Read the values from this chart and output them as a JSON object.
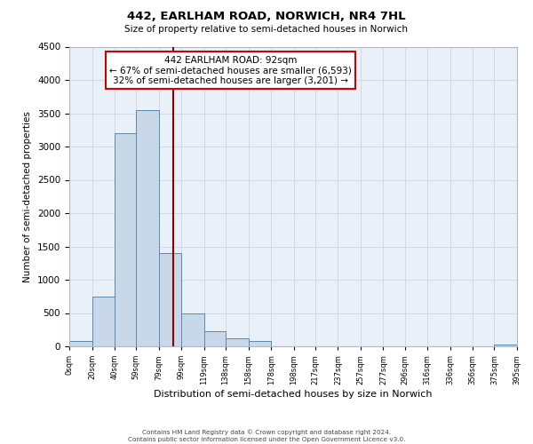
{
  "title": "442, EARLHAM ROAD, NORWICH, NR4 7HL",
  "subtitle": "Size of property relative to semi-detached houses in Norwich",
  "xlabel": "Distribution of semi-detached houses by size in Norwich",
  "ylabel": "Number of semi-detached properties",
  "bin_edges": [
    0,
    20,
    40,
    59,
    79,
    99,
    119,
    138,
    158,
    178,
    198,
    217,
    237,
    257,
    277,
    296,
    316,
    336,
    356,
    375,
    395
  ],
  "bin_counts": [
    75,
    750,
    3200,
    3550,
    1400,
    500,
    230,
    125,
    75,
    0,
    0,
    0,
    0,
    0,
    0,
    0,
    0,
    0,
    0,
    30
  ],
  "bar_color": "#c8d8e8",
  "bar_edge_color": "#5a8ab0",
  "property_size": 92,
  "vline_color": "#8b0000",
  "annotation_line1": "442 EARLHAM ROAD: 92sqm",
  "annotation_line2": "← 67% of semi-detached houses are smaller (6,593)",
  "annotation_line3": "32% of semi-detached houses are larger (3,201) →",
  "annotation_box_color": "#ffffff",
  "annotation_box_edge": "#cc0000",
  "ylim": [
    0,
    4500
  ],
  "yticks": [
    0,
    500,
    1000,
    1500,
    2000,
    2500,
    3000,
    3500,
    4000,
    4500
  ],
  "tick_labels": [
    "0sqm",
    "20sqm",
    "40sqm",
    "59sqm",
    "79sqm",
    "99sqm",
    "119sqm",
    "138sqm",
    "158sqm",
    "178sqm",
    "198sqm",
    "217sqm",
    "237sqm",
    "257sqm",
    "277sqm",
    "296sqm",
    "316sqm",
    "336sqm",
    "356sqm",
    "375sqm",
    "395sqm"
  ],
  "background_color": "#ffffff",
  "grid_color": "#d0d8e8",
  "footer_line1": "Contains HM Land Registry data © Crown copyright and database right 2024.",
  "footer_line2": "Contains public sector information licensed under the Open Government Licence v3.0."
}
